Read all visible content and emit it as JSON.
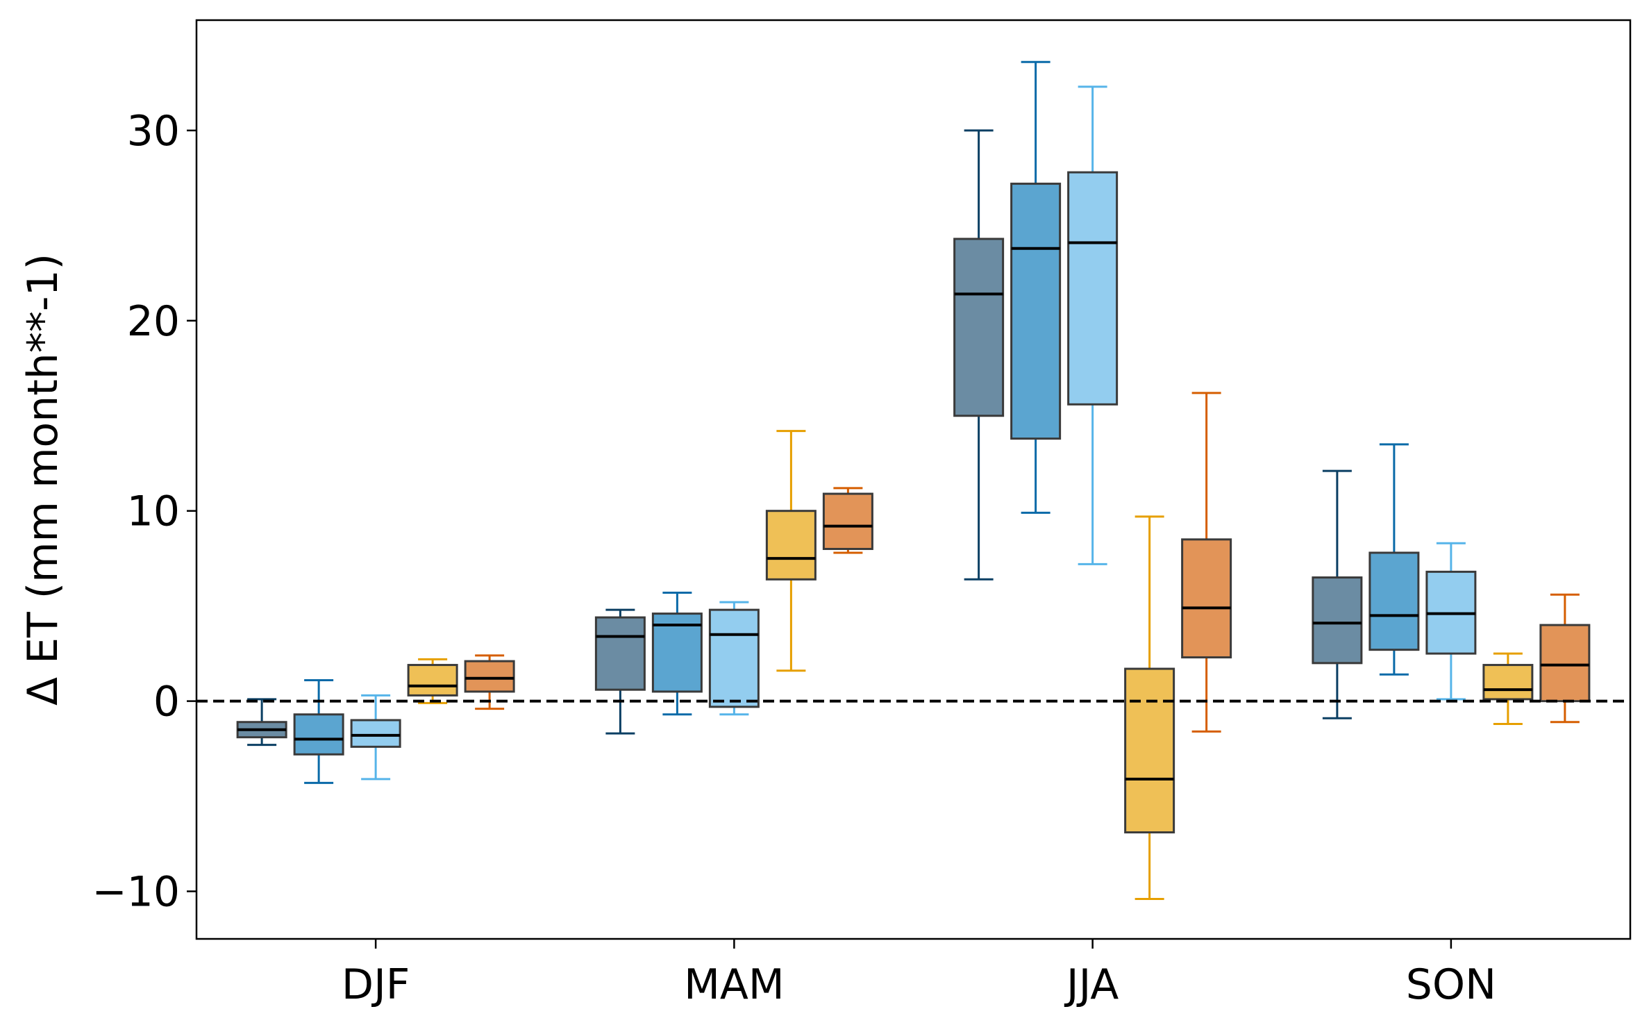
{
  "chart_data": {
    "type": "box",
    "title": "",
    "xlabel": "",
    "ylabel": "Δ ET (mm month**-1)",
    "categories": [
      "DJF",
      "MAM",
      "JJA",
      "SON"
    ],
    "ylim": [
      -12.5,
      35.8
    ],
    "yticks": [
      -10,
      0,
      10,
      20,
      30
    ],
    "ytick_labels": [
      "−10",
      "0",
      "10",
      "20",
      "30"
    ],
    "grid": false,
    "legend": "none",
    "reference_line": {
      "y": 0,
      "style": "dashed",
      "color": "#000000"
    },
    "series": [
      {
        "edge_color": "#0b3f63",
        "fill_color": "#6b8ca3",
        "boxes": [
          {
            "whislo": -2.3,
            "q1": -1.9,
            "med": -1.5,
            "q3": -1.1,
            "whishi": 0.1
          },
          {
            "whislo": -1.7,
            "q1": 0.6,
            "med": 3.4,
            "q3": 4.4,
            "whishi": 4.8
          },
          {
            "whislo": 6.4,
            "q1": 15.0,
            "med": 21.4,
            "q3": 24.3,
            "whishi": 30.0
          },
          {
            "whislo": -0.9,
            "q1": 2.0,
            "med": 4.1,
            "q3": 6.5,
            "whishi": 12.1
          }
        ]
      },
      {
        "edge_color": "#0a6aa8",
        "fill_color": "#5ba5d0",
        "boxes": [
          {
            "whislo": -4.3,
            "q1": -2.8,
            "med": -2.0,
            "q3": -0.7,
            "whishi": 1.1
          },
          {
            "whislo": -0.7,
            "q1": 0.5,
            "med": 4.0,
            "q3": 4.6,
            "whishi": 5.7
          },
          {
            "whislo": 9.9,
            "q1": 13.8,
            "med": 23.8,
            "q3": 27.2,
            "whishi": 33.6
          },
          {
            "whislo": 1.4,
            "q1": 2.7,
            "med": 4.5,
            "q3": 7.8,
            "whishi": 13.5
          }
        ]
      },
      {
        "edge_color": "#56b4e9",
        "fill_color": "#93cdef",
        "boxes": [
          {
            "whislo": -4.1,
            "q1": -2.4,
            "med": -1.8,
            "q3": -1.0,
            "whishi": 0.3
          },
          {
            "whislo": -0.7,
            "q1": -0.3,
            "med": 3.5,
            "q3": 4.8,
            "whishi": 5.2
          },
          {
            "whislo": 7.2,
            "q1": 15.6,
            "med": 24.1,
            "q3": 27.8,
            "whishi": 32.3
          },
          {
            "whislo": 0.1,
            "q1": 2.5,
            "med": 4.6,
            "q3": 6.8,
            "whishi": 8.3
          }
        ]
      },
      {
        "edge_color": "#e69f00",
        "fill_color": "#efc056",
        "boxes": [
          {
            "whislo": -0.1,
            "q1": 0.3,
            "med": 0.8,
            "q3": 1.9,
            "whishi": 2.2
          },
          {
            "whislo": 1.6,
            "q1": 6.4,
            "med": 7.5,
            "q3": 10.0,
            "whishi": 14.2
          },
          {
            "whislo": -10.4,
            "q1": -6.9,
            "med": -4.1,
            "q3": 1.7,
            "whishi": 9.7
          },
          {
            "whislo": -1.2,
            "q1": 0.1,
            "med": 0.6,
            "q3": 1.9,
            "whishi": 2.5
          }
        ]
      },
      {
        "edge_color": "#d55e00",
        "fill_color": "#e29458",
        "boxes": [
          {
            "whislo": -0.4,
            "q1": 0.5,
            "med": 1.2,
            "q3": 2.1,
            "whishi": 2.4
          },
          {
            "whislo": 7.8,
            "q1": 8.0,
            "med": 9.2,
            "q3": 10.9,
            "whishi": 11.2
          },
          {
            "whislo": -1.6,
            "q1": 2.3,
            "med": 4.9,
            "q3": 8.5,
            "whishi": 16.2
          },
          {
            "whislo": -1.1,
            "q1": 0.0,
            "med": 1.9,
            "q3": 4.0,
            "whishi": 5.6
          }
        ]
      }
    ]
  }
}
